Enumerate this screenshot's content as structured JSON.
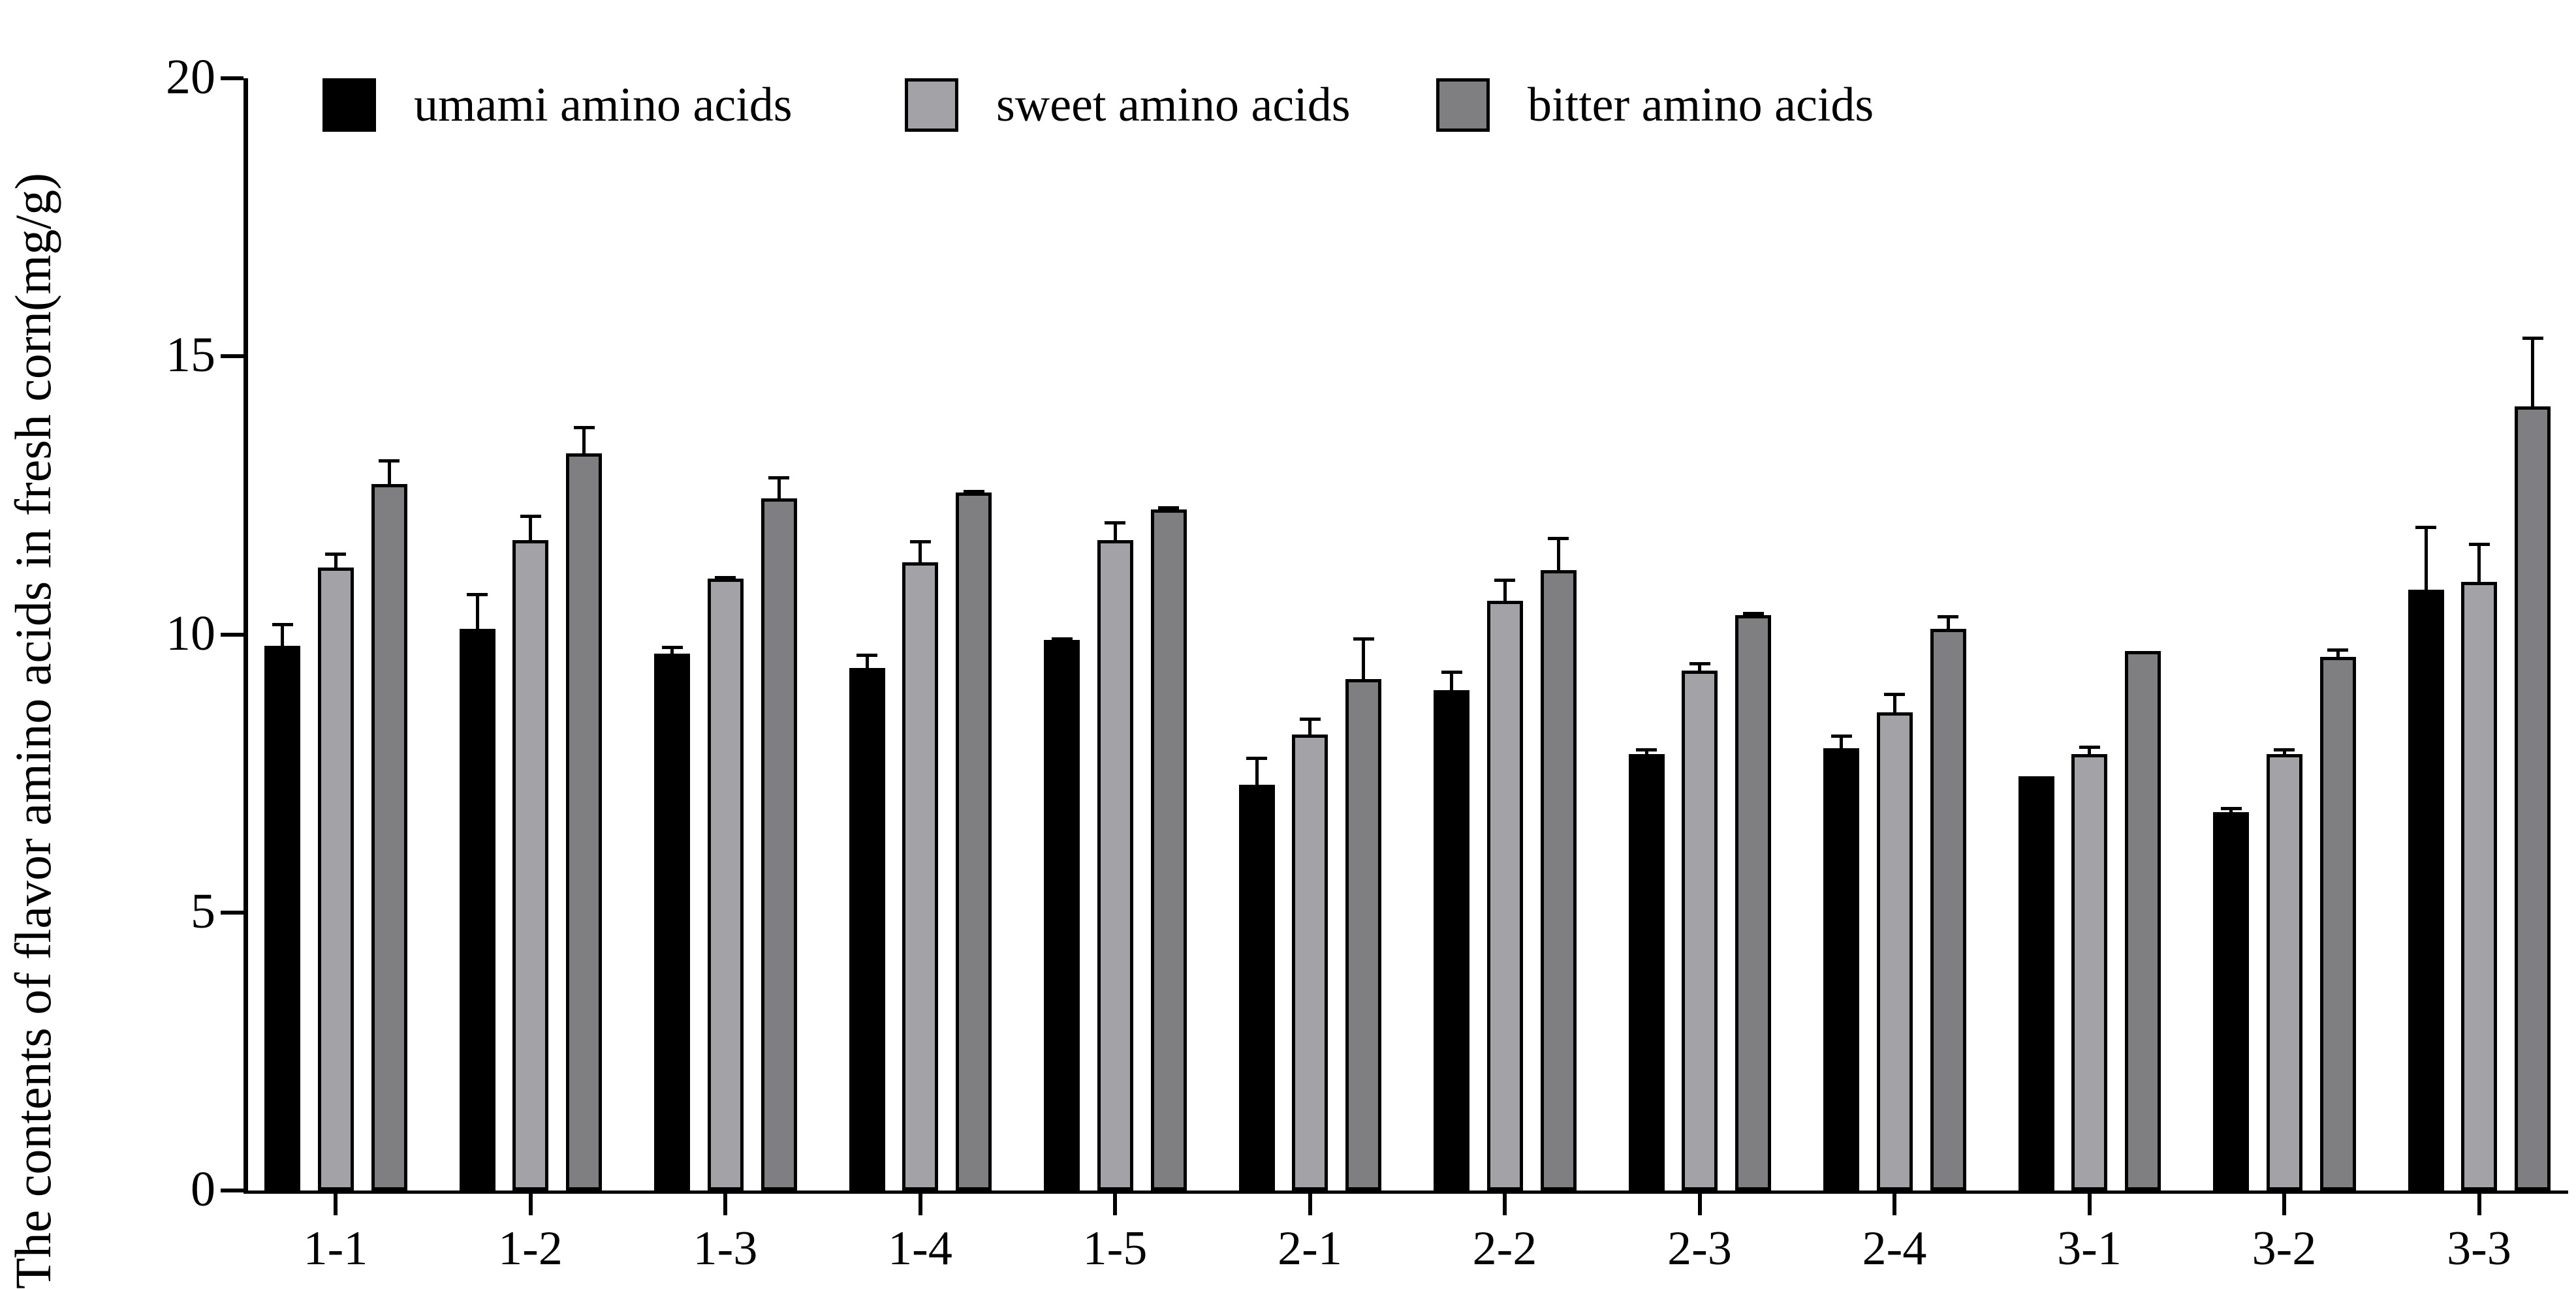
{
  "chart_data": {
    "type": "bar",
    "title": "",
    "xlabel": "",
    "ylabel": "The contents of flavor amino acids in fresh corn(mg/g)",
    "ylim": [
      0,
      20
    ],
    "yticks": [
      0,
      5,
      10,
      15,
      20
    ],
    "grid": false,
    "legend_position": "top-left-inside",
    "error_bars": "upper",
    "categories": [
      "1-1",
      "1-2",
      "1-3",
      "1-4",
      "1-5",
      "2-1",
      "2-2",
      "2-3",
      "2-4",
      "3-1",
      "3-2",
      "3-3"
    ],
    "series": [
      {
        "name": "umami amino acids",
        "color": "#000000",
        "values": [
          9.8,
          10.1,
          9.65,
          9.4,
          9.9,
          7.3,
          9.0,
          7.85,
          7.95,
          7.45,
          6.8,
          10.8
        ],
        "errors": [
          0.4,
          0.65,
          0.15,
          0.25,
          0.05,
          0.5,
          0.35,
          0.1,
          0.25,
          0.0,
          0.1,
          1.15
        ]
      },
      {
        "name": "sweet amino acids",
        "color": "#A2A2A7",
        "values": [
          11.2,
          11.7,
          11.0,
          11.3,
          11.7,
          8.2,
          10.6,
          9.35,
          8.6,
          7.85,
          7.85,
          10.95
        ],
        "errors": [
          0.27,
          0.45,
          0.05,
          0.4,
          0.33,
          0.3,
          0.4,
          0.15,
          0.35,
          0.15,
          0.1,
          0.7
        ]
      },
      {
        "name": "bitter amino acids",
        "color": "#7F7F82",
        "values": [
          12.7,
          13.25,
          12.45,
          12.55,
          12.25,
          9.2,
          11.15,
          10.35,
          10.1,
          9.7,
          9.6,
          14.1
        ],
        "errors": [
          0.45,
          0.5,
          0.4,
          0.05,
          0.05,
          0.75,
          0.6,
          0.05,
          0.25,
          0.0,
          0.15,
          1.25
        ]
      }
    ]
  }
}
